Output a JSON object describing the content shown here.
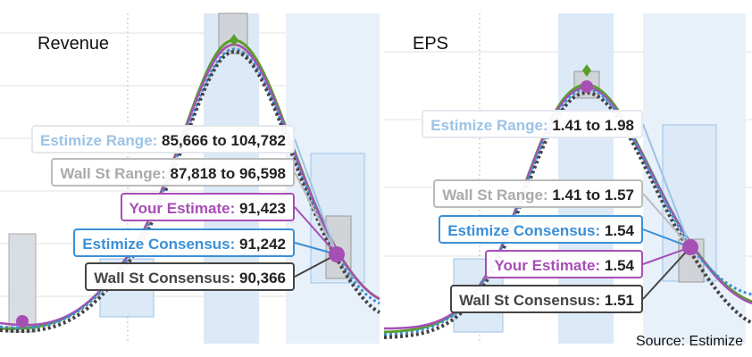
{
  "panels": [
    {
      "title": "Revenue",
      "callouts": [
        {
          "name": "Estimize Range",
          "text": "85,666 to 104,782"
        },
        {
          "name": "Wall St Range",
          "text": "87,818 to 96,598"
        },
        {
          "name": "Your Estimate",
          "text": "91,423"
        },
        {
          "name": "Estimize Consensus",
          "text": "91,242"
        },
        {
          "name": "Wall St Consensus",
          "text": "90,366"
        }
      ]
    },
    {
      "title": "EPS",
      "callouts": [
        {
          "name": "Estimize Range",
          "text": "1.41 to 1.98"
        },
        {
          "name": "Wall St Range",
          "text": "1.41 to 1.57"
        },
        {
          "name": "Estimize Consensus",
          "text": "1.54"
        },
        {
          "name": "Your Estimate",
          "text": "1.54"
        },
        {
          "name": "Wall St Consensus",
          "text": "1.51"
        }
      ]
    }
  ],
  "source": "Source: Estimize"
}
